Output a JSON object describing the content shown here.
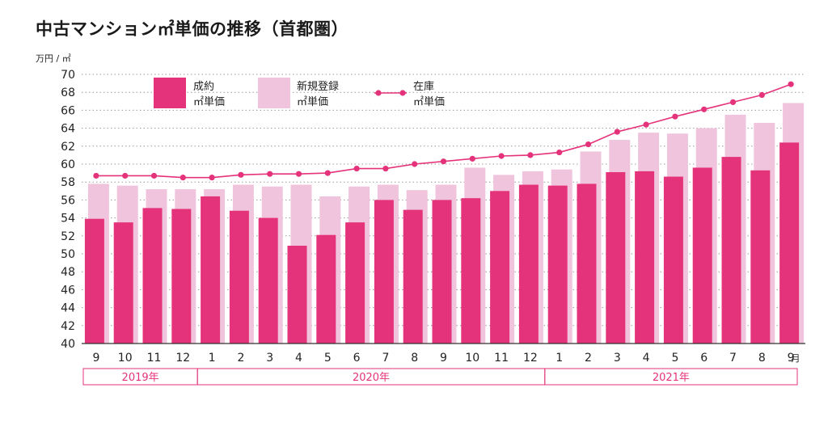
{
  "title": "中古マンション㎡単価の推移（首都圏）",
  "chart_data": {
    "type": "bar",
    "yunit": "万円 / ㎡",
    "xunit": "月",
    "ylim": [
      40,
      70
    ],
    "yticks": [
      40,
      42,
      44,
      46,
      48,
      50,
      52,
      54,
      56,
      58,
      60,
      62,
      64,
      66,
      68,
      70
    ],
    "grid": true,
    "legend_position": "top",
    "categories": [
      "9",
      "10",
      "11",
      "12",
      "1",
      "2",
      "3",
      "4",
      "5",
      "6",
      "7",
      "8",
      "9",
      "10",
      "11",
      "12",
      "1",
      "2",
      "3",
      "4",
      "5",
      "6",
      "7",
      "8",
      "9"
    ],
    "years": [
      {
        "label": "2019年",
        "start": 0,
        "end": 3
      },
      {
        "label": "2020年",
        "start": 4,
        "end": 15
      },
      {
        "label": "2021年",
        "start": 16,
        "end": 24
      }
    ],
    "series": [
      {
        "name": "成約\n㎡単価",
        "type": "bar",
        "color": "#e5337b",
        "values": [
          53.9,
          53.5,
          55.1,
          55.0,
          56.4,
          54.8,
          54.0,
          50.9,
          52.1,
          53.5,
          56.0,
          54.9,
          56.0,
          56.2,
          57.0,
          57.7,
          57.6,
          57.8,
          59.1,
          59.2,
          58.6,
          59.6,
          60.8,
          59.3,
          62.4
        ]
      },
      {
        "name": "新規登録\n㎡単価",
        "type": "bar",
        "color": "#f0c4dc",
        "values": [
          57.8,
          57.6,
          57.2,
          57.2,
          57.2,
          57.7,
          57.5,
          57.7,
          56.4,
          57.5,
          57.7,
          57.1,
          57.7,
          59.6,
          58.8,
          59.2,
          59.4,
          61.4,
          62.7,
          63.5,
          63.4,
          64.0,
          65.5,
          64.6,
          66.8
        ]
      },
      {
        "name": "在庫\n㎡単価",
        "type": "line",
        "color": "#e5337b",
        "values": [
          58.7,
          58.7,
          58.7,
          58.5,
          58.5,
          58.8,
          58.9,
          58.9,
          59.0,
          59.5,
          59.5,
          60.0,
          60.3,
          60.6,
          60.9,
          61.0,
          61.3,
          62.2,
          63.6,
          64.4,
          65.3,
          66.1,
          66.9,
          67.7,
          68.9
        ]
      }
    ]
  }
}
